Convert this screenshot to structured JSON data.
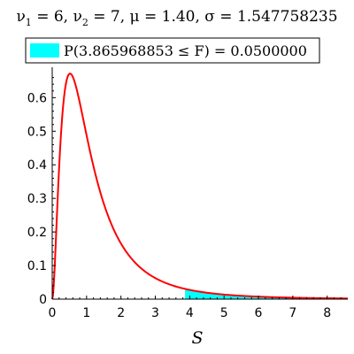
{
  "chart_data": {
    "type": "area",
    "title_parts": {
      "nu_symbol": "ν",
      "nu1_sub": "1",
      "nu1_value": " = 6, ",
      "nu2_sub": "2",
      "nu2_value": " = 7, ",
      "mu_symbol": "μ",
      "mu_value": " = 1.40, ",
      "sigma_symbol": "σ",
      "sigma_value": " = 1.547758235"
    },
    "legend": {
      "label": "P(3.865968853 ≤ F) = 0.0500000",
      "swatch_color": "#00ffff",
      "placement": "top"
    },
    "xlabel": "S",
    "ylabel": "",
    "xlim": [
      0,
      8.6
    ],
    "ylim": [
      0,
      0.68
    ],
    "x_ticks": [
      0,
      1,
      2,
      3,
      4,
      5,
      6,
      7,
      8
    ],
    "y_ticks": [
      0,
      0.1,
      0.2,
      0.3,
      0.4,
      0.5,
      0.6
    ],
    "grid": false,
    "distribution": {
      "name": "F",
      "d1": 6,
      "d2": 7
    },
    "shaded_from": 3.865968853,
    "shaded_probability": 0.05,
    "curve_color": "#ff0000",
    "fill_color": "#00ffff"
  }
}
